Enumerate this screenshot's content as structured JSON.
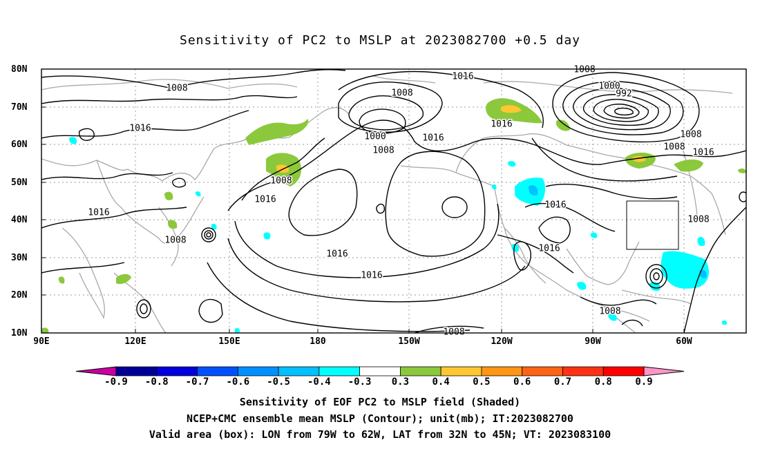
{
  "title": "Sensitivity of PC2 to MSLP at 2023082700 +0.5 day",
  "map": {
    "lat_labels": [
      "80N",
      "70N",
      "60N",
      "50N",
      "40N",
      "30N",
      "20N",
      "10N"
    ],
    "lon_labels": [
      "90E",
      "120E",
      "150E",
      "180",
      "150W",
      "120W",
      "90W",
      "60W"
    ],
    "grid": "dotted",
    "contour_interval_mb": 8,
    "contour_labels": [
      "1008",
      "1016",
      "1016",
      "1008",
      "1000",
      "992",
      "1008",
      "1016",
      "1016",
      "1008",
      "1008",
      "1008",
      "1016",
      "1008",
      "1016",
      "1000",
      "1008",
      "1016",
      "1008",
      "1016",
      "1016",
      "1016",
      "1016",
      "1008",
      "1008"
    ],
    "valid_box": {
      "lon_from": "79W",
      "lon_to": "62W",
      "lat_from": "32N",
      "lat_to": "45N"
    }
  },
  "colorbar": {
    "labels": [
      "-0.9",
      "-0.8",
      "-0.7",
      "-0.6",
      "-0.5",
      "-0.4",
      "-0.3",
      "0.3",
      "0.4",
      "0.5",
      "0.6",
      "0.7",
      "0.8",
      "0.9"
    ],
    "colors": [
      "#000096",
      "#0000dc",
      "#0050ff",
      "#0090ff",
      "#00c0ff",
      "#00ffff",
      "#ffffff",
      "#8cc83c",
      "#ffc832",
      "#ff9614",
      "#ff6414",
      "#ff3214",
      "#ff0000"
    ],
    "low_end_color": "#c800a0",
    "high_end_color": "#ff96c8"
  },
  "captions": {
    "line1": "Sensitivity of EOF PC2 to MSLP field (Shaded)",
    "line2": "NCEP+CMC ensemble mean MSLP (Contour); unit(mb); IT:2023082700",
    "line3": "Valid area (box): LON from 79W to 62W, LAT from 32N to 45N; VT: 2023083100"
  }
}
